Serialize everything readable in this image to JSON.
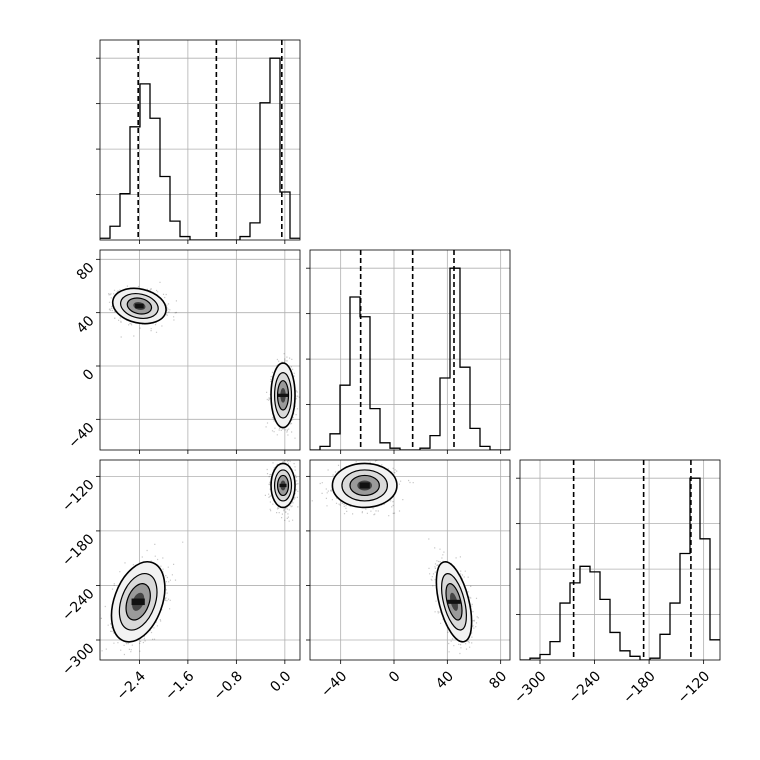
{
  "chart_data": {
    "type": "corner",
    "parameters": 3,
    "axes": [
      {
        "name": "",
        "range": [
          -3.05,
          0.25
        ],
        "ticks": [
          -2.4,
          -1.6,
          -0.8,
          0.0
        ],
        "tick_labels": [
          "−2.4",
          "−1.6",
          "−0.8",
          "0.0"
        ],
        "quantiles": [
          -2.42,
          -1.13,
          -0.05
        ]
      },
      {
        "name": "",
        "range": [
          -63,
          87
        ],
        "ticks": [
          -40,
          0,
          40,
          80
        ],
        "tick_labels": [
          "−40",
          "0",
          "40",
          "80"
        ],
        "quantiles": [
          -25,
          14,
          45
        ]
      },
      {
        "name": "",
        "range": [
          -322,
          -102
        ],
        "ticks": [
          -300,
          -240,
          -180,
          -120
        ],
        "tick_labels": [
          "−300",
          "−240",
          "−180",
          "−120"
        ],
        "quantiles": [
          -263,
          -186,
          -134
        ]
      }
    ],
    "histograms": [
      {
        "param": 0,
        "bin_edges": [
          -3.05,
          -2.885,
          -2.72,
          -2.555,
          -2.39,
          -2.225,
          -2.06,
          -1.895,
          -1.73,
          -1.565,
          -1.4,
          -1.235,
          -1.07,
          -0.905,
          -0.74,
          -0.575,
          -0.41,
          -0.245,
          -0.08,
          0.085,
          0.25
        ],
        "counts": [
          1,
          8,
          27,
          66,
          91,
          71,
          37,
          11,
          2,
          0,
          0,
          0,
          0,
          0,
          2,
          10,
          80,
          106,
          28,
          1
        ]
      },
      {
        "param": 1,
        "bin_edges": [
          -63,
          -55.5,
          -48,
          -40.5,
          -33,
          -25.5,
          -18,
          -10.5,
          -3,
          4.5,
          12,
          19.5,
          27,
          34.5,
          42,
          49.5,
          57,
          64.5,
          72,
          79.5,
          87
        ],
        "counts": [
          0,
          2,
          9,
          36,
          85,
          74,
          23,
          4,
          1,
          0,
          0,
          1,
          8,
          40,
          101,
          46,
          12,
          2,
          0,
          0
        ]
      },
      {
        "param": 2,
        "bin_edges": [
          -322,
          -311,
          -300,
          -289,
          -278,
          -267,
          -256,
          -245,
          -234,
          -223,
          -212,
          -201,
          -190,
          -179,
          -168,
          -157,
          -146,
          -135,
          -124,
          -113,
          -102
        ],
        "counts": [
          0,
          1,
          3,
          10,
          31,
          42,
          51,
          48,
          33,
          15,
          5,
          2,
          0,
          1,
          14,
          31,
          58,
          99,
          66,
          11
        ]
      }
    ],
    "pairs": [
      {
        "x_param": 0,
        "y_param": 1,
        "clusters": [
          {
            "center_x": -2.4,
            "center_y": 45,
            "sd_x": 0.2,
            "sd_y": 6,
            "rho": -0.2
          },
          {
            "center_x": -0.03,
            "center_y": -22,
            "sd_x": 0.09,
            "sd_y": 11,
            "rho": 0.0
          }
        ]
      },
      {
        "x_param": 0,
        "y_param": 2,
        "clusters": [
          {
            "center_x": -2.42,
            "center_y": -258,
            "sd_x": 0.2,
            "sd_y": 20,
            "rho": 0.35
          },
          {
            "center_x": -0.03,
            "center_y": -130,
            "sd_x": 0.09,
            "sd_y": 11,
            "rho": 0.0
          }
        ]
      },
      {
        "x_param": 1,
        "y_param": 2,
        "clusters": [
          {
            "center_x": -22,
            "center_y": -130,
            "sd_x": 11,
            "sd_y": 11,
            "rho": 0.0
          },
          {
            "center_x": 45,
            "center_y": -258,
            "sd_x": 6,
            "sd_y": 20,
            "rho": -0.5
          }
        ]
      }
    ],
    "grid": true,
    "title": "",
    "legend": ""
  }
}
